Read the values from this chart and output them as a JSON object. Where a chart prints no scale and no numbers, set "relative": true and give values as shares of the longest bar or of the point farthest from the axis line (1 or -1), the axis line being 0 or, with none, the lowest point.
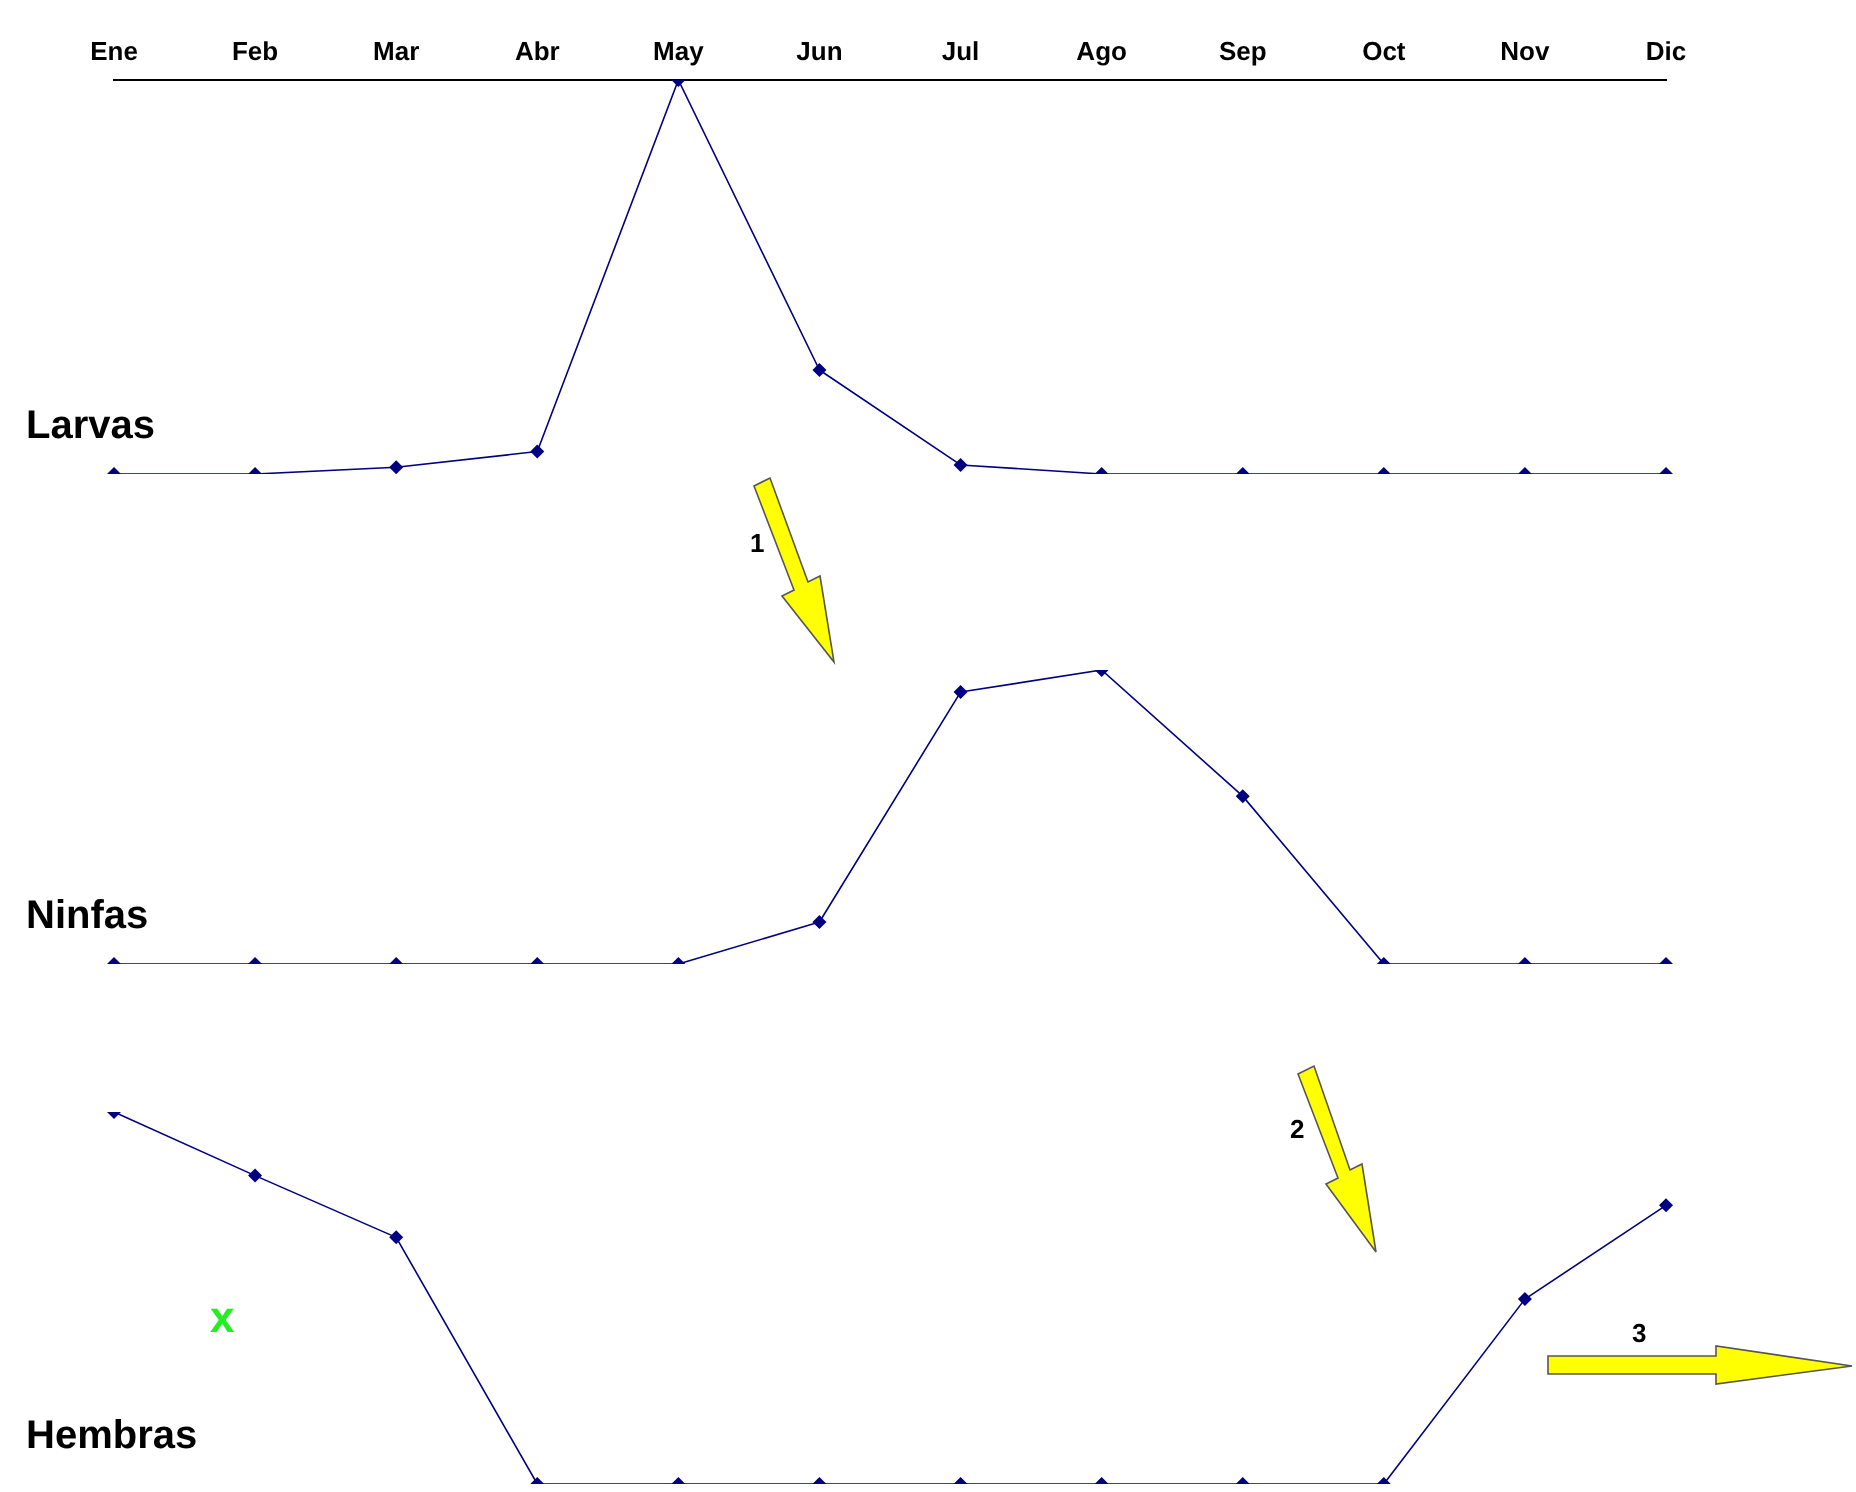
{
  "chart_data": [
    {
      "type": "line",
      "categories": [
        "Ene",
        "Feb",
        "Mar",
        "Abr",
        "May",
        "Jun",
        "Jul",
        "Ago",
        "Sep",
        "Oct",
        "Nov",
        "Dic"
      ],
      "relative": true,
      "tick_labels": "x",
      "marker": "diamond",
      "annotations": [
        "1"
      ],
      "series": [
        {
          "name": "Larvas",
          "color": "#000080",
          "values": [
            0,
            0,
            0.017,
            0.057,
            1,
            0.264,
            0.023,
            0,
            0,
            0,
            0,
            0
          ]
        }
      ]
    },
    {
      "type": "line",
      "categories": [
        null,
        null,
        null,
        null,
        null,
        null,
        null,
        null,
        null,
        null,
        null,
        null
      ],
      "relative": true,
      "tick_labels": false,
      "marker": "diamond",
      "series": [
        {
          "name": "Ninfas",
          "color": "#000080",
          "values": [
            0,
            0,
            0,
            0,
            0,
            0.143,
            0.925,
            1,
            0.571,
            0,
            0,
            0
          ]
        }
      ]
    },
    {
      "type": "line",
      "categories": [
        null,
        null,
        null,
        null,
        null,
        null,
        null,
        null,
        null,
        null,
        null,
        null
      ],
      "relative": true,
      "tick_labels": false,
      "marker": "diamond",
      "annotations": [
        "2",
        "3",
        "x"
      ],
      "series": [
        {
          "name": "Hembras",
          "color": "#000080",
          "values": [
            1,
            0.829,
            0.663,
            0,
            0,
            0,
            0,
            0,
            0,
            0,
            0.497,
            0.749
          ]
        }
      ]
    }
  ]
}
